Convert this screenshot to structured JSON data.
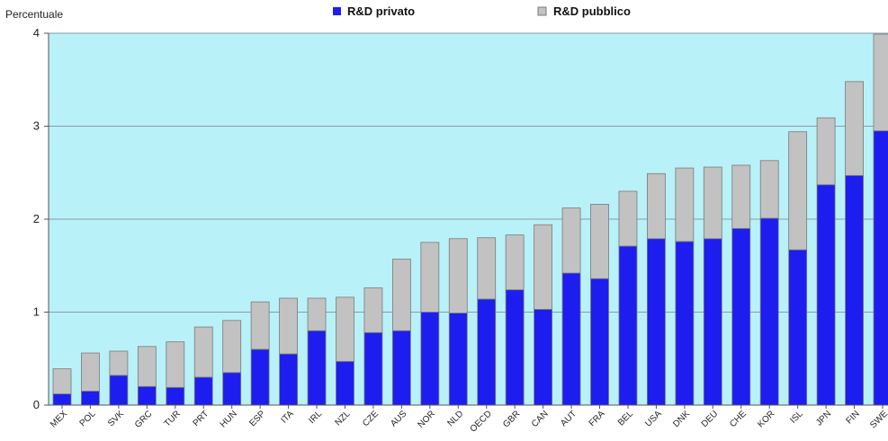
{
  "colors": {
    "plot_background": "#b9f1f9",
    "private": "#1d1df0",
    "public": "#c2c2c2",
    "bar_outline": "#7a7a7a",
    "gridline": "#8a9aa0",
    "axis": "#555555"
  },
  "chart_data": {
    "type": "bar",
    "stacked": true,
    "ylabel": "Percentuale",
    "ylim": [
      0,
      4
    ],
    "yticks": [
      "0",
      "1",
      "2",
      "3",
      "4"
    ],
    "grid": true,
    "legend_position": "top-center",
    "legend_entries": [
      "R&D privato",
      "R&D pubblico"
    ],
    "categories": [
      "MEX",
      "POL",
      "SVK",
      "GRC",
      "TUR",
      "PRT",
      "HUN",
      "ESP",
      "ITA",
      "IRL",
      "NZL",
      "CZE",
      "AUS",
      "NOR",
      "NLD",
      "OECD",
      "GBR",
      "CAN",
      "AUT",
      "FRA",
      "BEL",
      "USA",
      "DNK",
      "DEU",
      "CHE",
      "KOR",
      "ISL",
      "JPN",
      "FIN",
      "SWE"
    ],
    "series": [
      {
        "name": "R&D privato",
        "color": "#1d1df0",
        "values": [
          0.12,
          0.15,
          0.32,
          0.2,
          0.19,
          0.3,
          0.35,
          0.6,
          0.55,
          0.8,
          0.47,
          0.78,
          0.8,
          1.0,
          0.99,
          1.14,
          1.24,
          1.03,
          1.42,
          1.36,
          1.71,
          1.79,
          1.76,
          1.79,
          1.9,
          2.01,
          1.67,
          2.37,
          2.47,
          2.95
        ]
      },
      {
        "name": "R&D pubblico",
        "color": "#c2c2c2",
        "values": [
          0.27,
          0.41,
          0.26,
          0.43,
          0.49,
          0.54,
          0.56,
          0.51,
          0.6,
          0.35,
          0.69,
          0.48,
          0.77,
          0.75,
          0.8,
          0.66,
          0.59,
          0.91,
          0.7,
          0.8,
          0.59,
          0.7,
          0.79,
          0.77,
          0.68,
          0.62,
          1.27,
          0.72,
          1.01,
          1.04
        ]
      }
    ]
  }
}
